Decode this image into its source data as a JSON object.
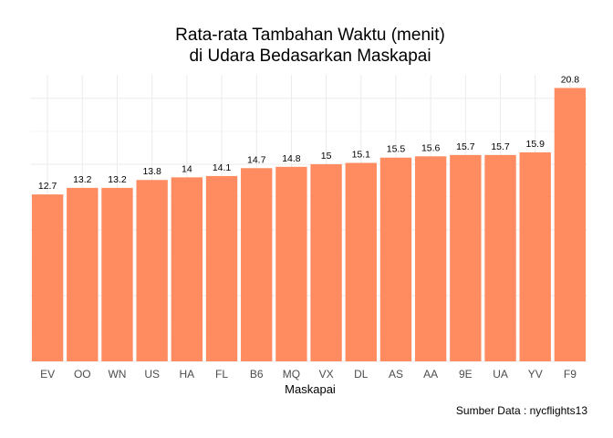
{
  "chart_data": {
    "type": "bar",
    "title_lines": [
      "Rata-rata Tambahan Waktu (menit)",
      "di Udara Bedasarkan Maskapai"
    ],
    "xlabel": "Maskapai",
    "ylabel": "",
    "caption": "Sumber Data : nycflights13",
    "categories": [
      "EV",
      "OO",
      "WN",
      "US",
      "HA",
      "FL",
      "B6",
      "MQ",
      "VX",
      "DL",
      "AS",
      "AA",
      "9E",
      "UA",
      "YV",
      "F9"
    ],
    "values": [
      12.7,
      13.2,
      13.2,
      13.8,
      14,
      14.1,
      14.7,
      14.8,
      15,
      15.1,
      15.5,
      15.6,
      15.7,
      15.7,
      15.9,
      20.8
    ],
    "ylim": [
      0,
      21.8
    ],
    "y_ticks_visible": false,
    "grid": true,
    "bar_color": "#ff8c61"
  }
}
